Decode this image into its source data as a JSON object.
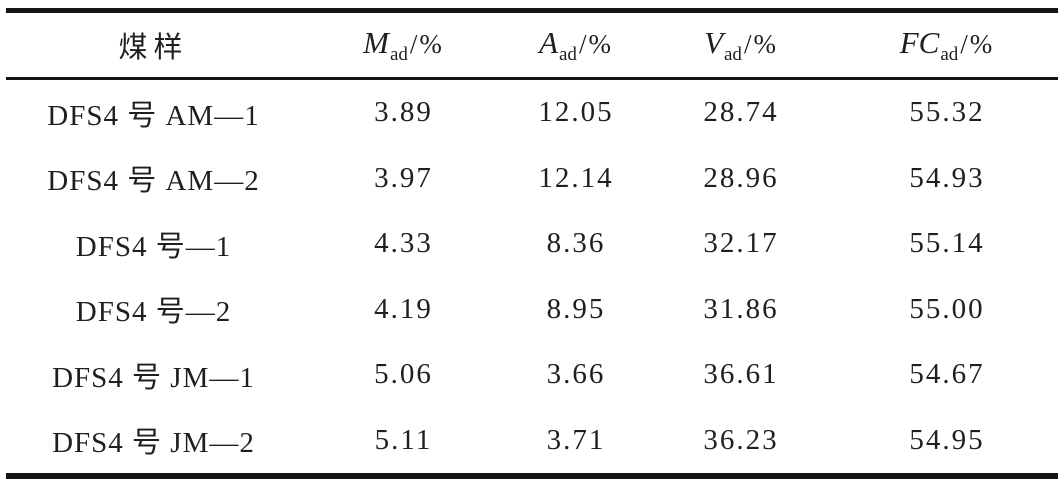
{
  "table": {
    "header": {
      "sample": "煤样",
      "m": {
        "symbol": "M",
        "sub": "ad",
        "suffix": "/%"
      },
      "a": {
        "symbol": "A",
        "sub": "ad",
        "suffix": "/%"
      },
      "v": {
        "symbol": "V",
        "sub": "ad",
        "suffix": "/%"
      },
      "fc": {
        "symbol": "FC",
        "sub": "ad",
        "suffix": "/%"
      }
    },
    "rows": [
      {
        "sample": "DFS4 号 AM—1",
        "m": "3.89",
        "a": "12.05",
        "v": "28.74",
        "fc": "55.32"
      },
      {
        "sample": "DFS4 号 AM—2",
        "m": "3.97",
        "a": "12.14",
        "v": "28.96",
        "fc": "54.93"
      },
      {
        "sample": "DFS4 号—1",
        "m": "4.33",
        "a": "8.36",
        "v": "32.17",
        "fc": "55.14"
      },
      {
        "sample": "DFS4 号—2",
        "m": "4.19",
        "a": "8.95",
        "v": "31.86",
        "fc": "55.00"
      },
      {
        "sample": "DFS4 号 JM—1",
        "m": "5.06",
        "a": "3.66",
        "v": "36.61",
        "fc": "54.67"
      },
      {
        "sample": "DFS4 号 JM—2",
        "m": "5.11",
        "a": "3.71",
        "v": "36.23",
        "fc": "54.95"
      }
    ]
  },
  "chart_data": {
    "type": "table",
    "title": "",
    "columns": [
      "煤样",
      "M_ad/%",
      "A_ad/%",
      "V_ad/%",
      "FC_ad/%"
    ],
    "rows": [
      [
        "DFS4 号 AM—1",
        3.89,
        12.05,
        28.74,
        55.32
      ],
      [
        "DFS4 号 AM—2",
        3.97,
        12.14,
        28.96,
        54.93
      ],
      [
        "DFS4 号—1",
        4.33,
        8.36,
        32.17,
        55.14
      ],
      [
        "DFS4 号—2",
        4.19,
        8.95,
        31.86,
        55.0
      ],
      [
        "DFS4 号 JM—1",
        5.06,
        3.66,
        36.61,
        54.67
      ],
      [
        "DFS4 号 JM—2",
        5.11,
        3.71,
        36.23,
        54.95
      ]
    ]
  }
}
